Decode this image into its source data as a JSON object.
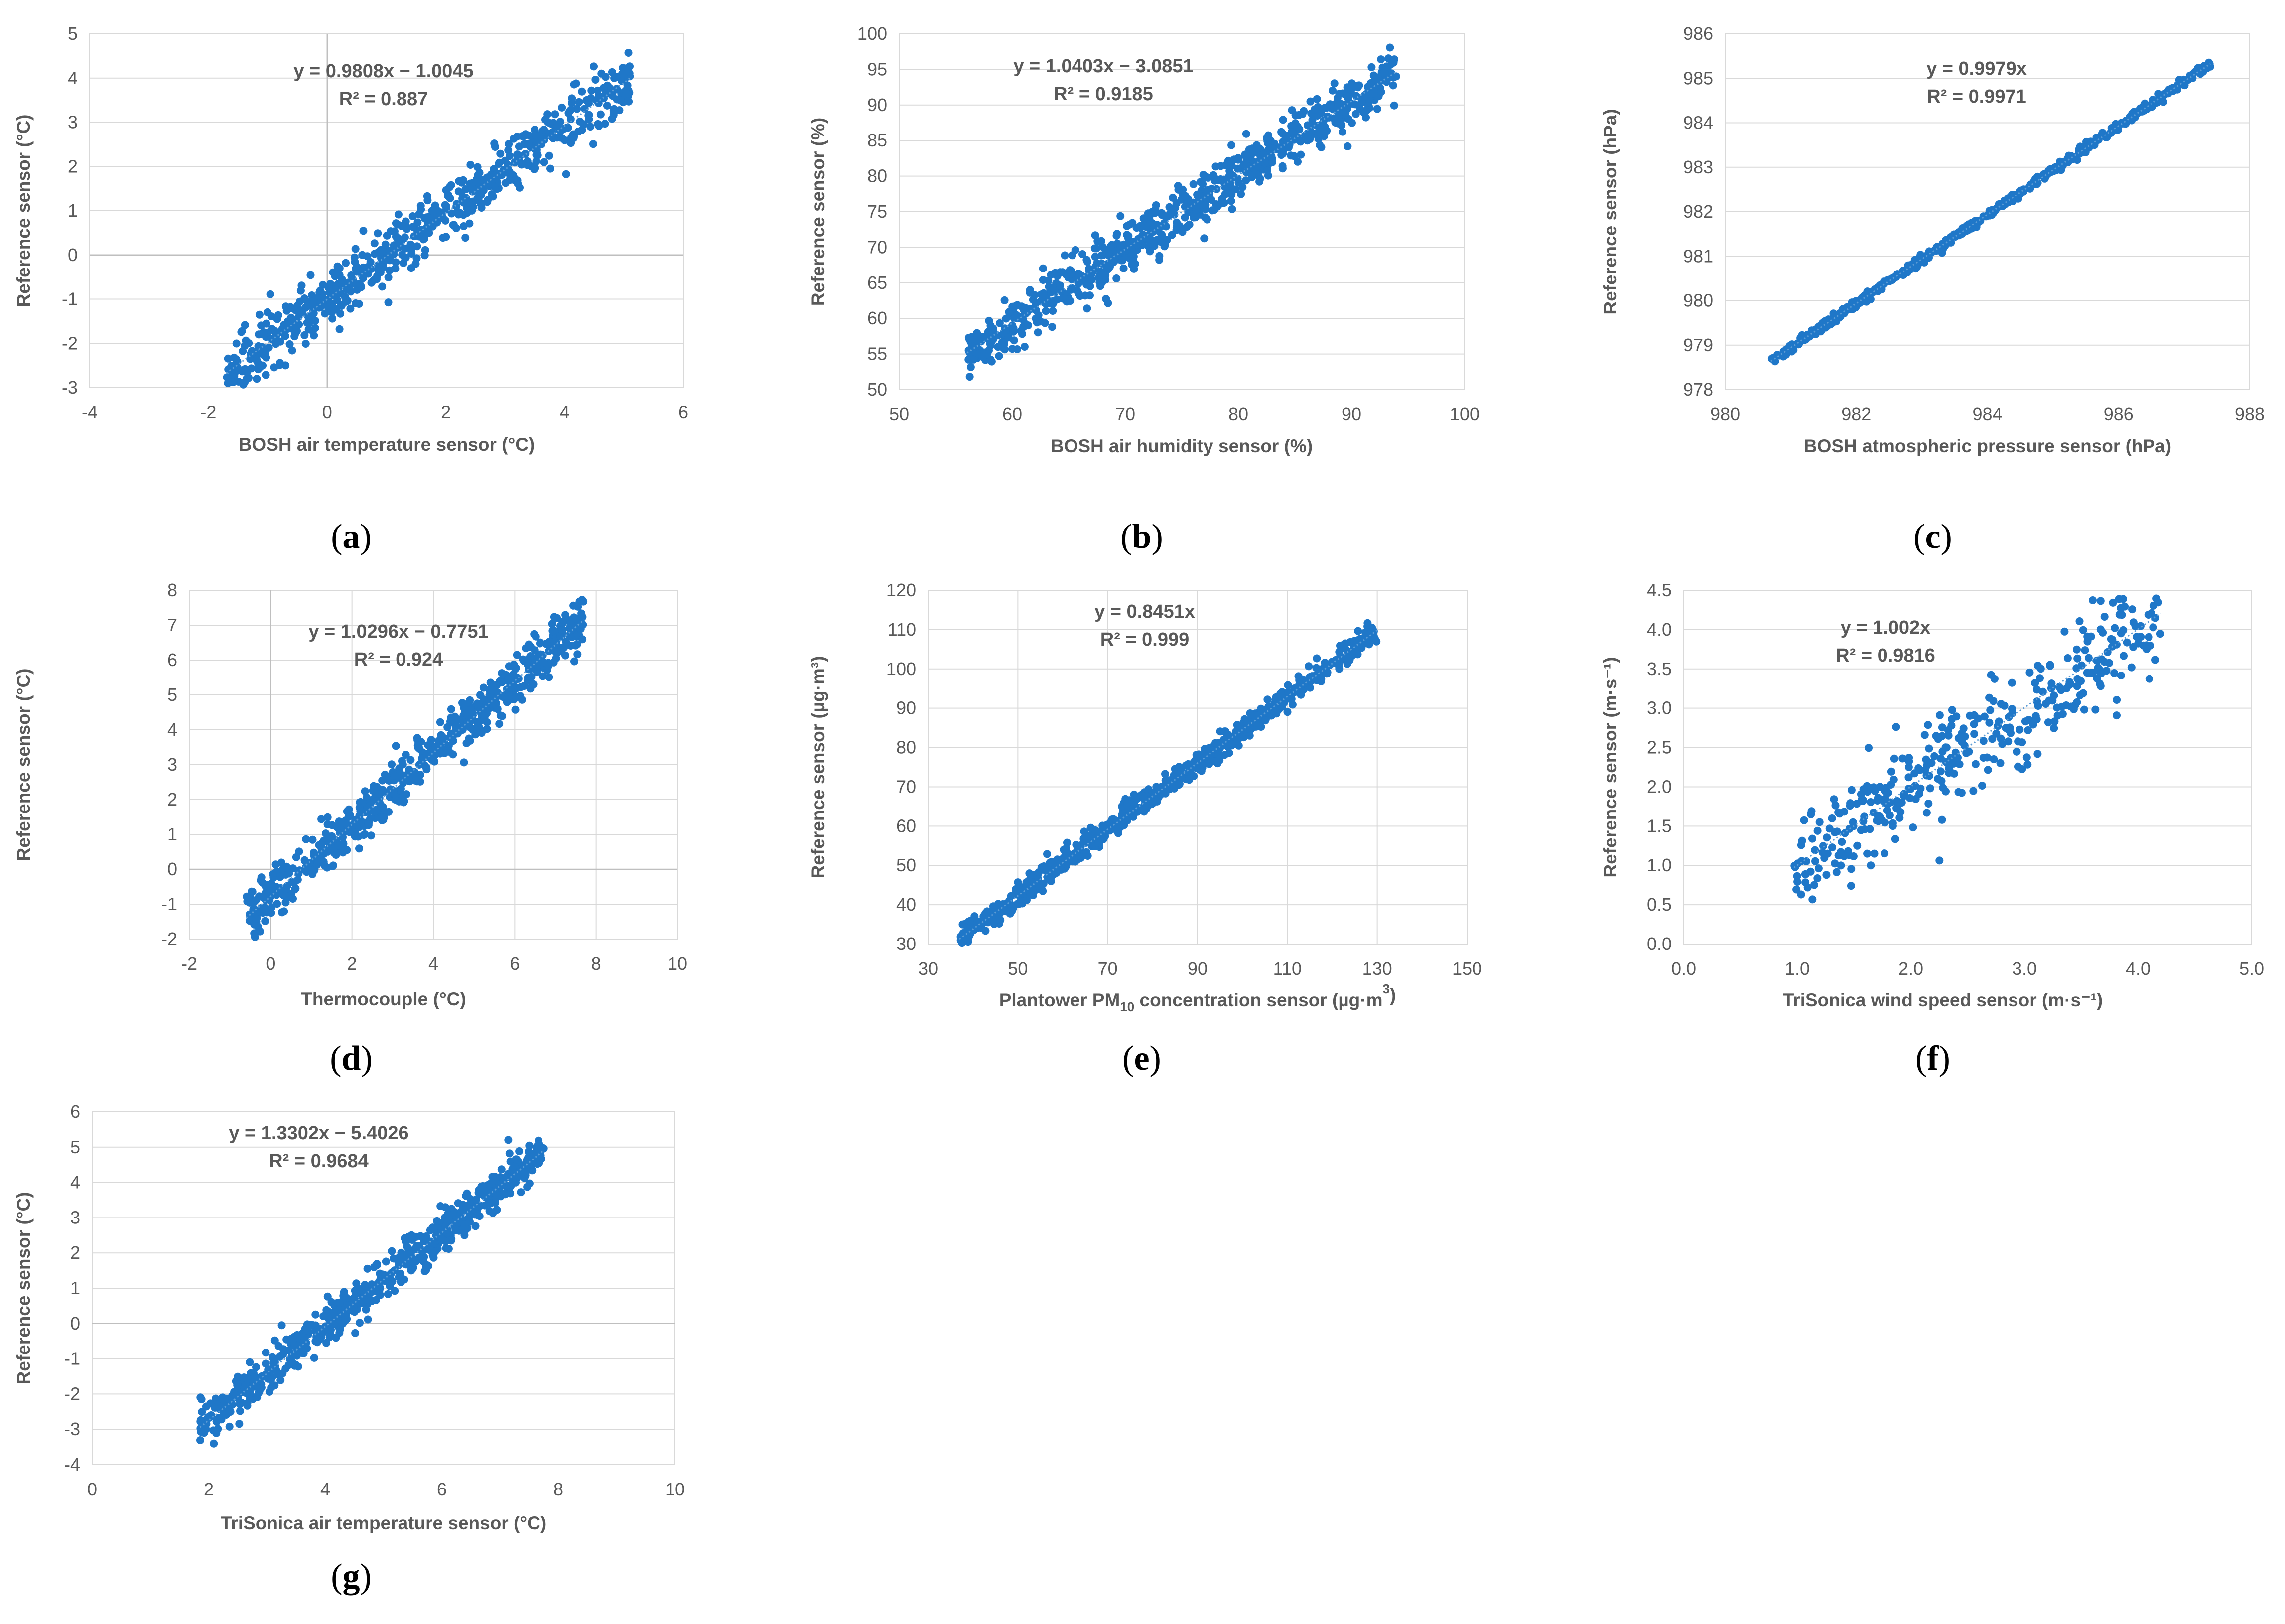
{
  "figure": {
    "marker_color": "#1F77C8",
    "grid_color": "#D9D9D9",
    "text_color": "#595959"
  },
  "chart_data": [
    {
      "id": "a",
      "type": "scatter",
      "caption": "a",
      "xlabel": "BOSH air temperature sensor (°C)",
      "ylabel": "Reference sensor (°C)",
      "xlim": [
        -4,
        6
      ],
      "ylim": [
        -3,
        5
      ],
      "xstep": 2,
      "ystep": 1,
      "xticks": [
        "-4",
        "-2",
        "0",
        "2",
        "4",
        "6"
      ],
      "yticks": [
        "-3",
        "-2",
        "-1",
        "0",
        "1",
        "2",
        "3",
        "4",
        "5"
      ],
      "equation": "y = 0.9808x − 1.0045",
      "r2": "R² = 0.887",
      "slope": 0.9808,
      "intercept": -1.0045,
      "x_range": [
        -1.7,
        5.1
      ],
      "n": 650,
      "noise": 0.32,
      "grid_vertical": false
    },
    {
      "id": "b",
      "type": "scatter",
      "caption": "b",
      "xlabel": "BOSH air humidity sensor (%)",
      "ylabel": "Reference sensor (%)",
      "xlim": [
        50,
        100
      ],
      "ylim": [
        50,
        100
      ],
      "xstep": 10,
      "ystep": 5,
      "xticks": [
        "50",
        "60",
        "70",
        "80",
        "90",
        "100"
      ],
      "yticks": [
        "50",
        "55",
        "60",
        "65",
        "70",
        "75",
        "80",
        "85",
        "90",
        "95",
        "100"
      ],
      "equation": "y = 1.0403x − 3.0851",
      "r2": "R² = 0.9185",
      "slope": 1.0403,
      "intercept": -3.0851,
      "x_range": [
        56,
        94
      ],
      "n": 750,
      "noise": 1.9,
      "grid_vertical": false
    },
    {
      "id": "c",
      "type": "scatter",
      "caption": "c",
      "xlabel": "BOSH atmospheric pressure sensor (hPa)",
      "ylabel": "Reference sensor (hPa)",
      "xlim": [
        980,
        988
      ],
      "ylim": [
        978,
        986
      ],
      "xstep": 2,
      "ystep": 1,
      "xticks": [
        "980",
        "982",
        "984",
        "986",
        "988"
      ],
      "yticks": [
        "978",
        "979",
        "980",
        "981",
        "982",
        "983",
        "984",
        "985",
        "986"
      ],
      "equation": "y = 0.9979x",
      "r2": "R² = 0.9971",
      "slope": 0.9979,
      "intercept": 0,
      "x_range": [
        980.7,
        987.4
      ],
      "n": 500,
      "noise": 0.05,
      "grid_vertical": false
    },
    {
      "id": "d",
      "type": "scatter",
      "caption": "d",
      "xlabel": "Thermocouple (°C)",
      "ylabel": "Reference sensor (°C)",
      "xlim": [
        -2,
        10
      ],
      "ylim": [
        -2,
        8
      ],
      "xstep": 2,
      "ystep": 1,
      "xticks": [
        "-2",
        "0",
        "2",
        "4",
        "6",
        "8",
        "10"
      ],
      "yticks": [
        "-2",
        "-1",
        "0",
        "1",
        "2",
        "3",
        "4",
        "5",
        "6",
        "7",
        "8"
      ],
      "equation": "y = 1.0296x − 0.7751",
      "r2": "R² = 0.924",
      "slope": 1.0296,
      "intercept": -0.7751,
      "x_range": [
        -0.6,
        7.7
      ],
      "n": 650,
      "noise": 0.35,
      "grid_vertical": true
    },
    {
      "id": "e",
      "type": "scatter",
      "caption": "e",
      "xlabel_parts": [
        "Plantower PM",
        "10",
        " concentration sensor (µg·m",
        "3",
        ")"
      ],
      "ylabel": "Reference sensor (µg·m³)",
      "xlim": [
        30,
        150
      ],
      "ylim": [
        30,
        120
      ],
      "xstep": 20,
      "ystep": 10,
      "xticks": [
        "30",
        "50",
        "70",
        "90",
        "110",
        "130",
        "150"
      ],
      "yticks": [
        "30",
        "40",
        "50",
        "60",
        "70",
        "80",
        "90",
        "100",
        "110",
        "120"
      ],
      "equation": "y = 0.8451x",
      "r2": "R² = 0.999",
      "slope": 0.8451,
      "intercept": 0,
      "x_range": [
        37,
        130
      ],
      "n": 650,
      "noise": 1.6,
      "grid_vertical": true
    },
    {
      "id": "f",
      "type": "scatter",
      "caption": "f",
      "xlabel": "TriSonica wind speed sensor (m·s⁻¹)",
      "ylabel": "Reference sensor (m·s⁻¹)",
      "xlim": [
        0,
        5
      ],
      "ylim": [
        0,
        4.5
      ],
      "xstep": 1,
      "ystep": 0.5,
      "xticks": [
        "0.0",
        "1.0",
        "2.0",
        "3.0",
        "4.0",
        "5.0"
      ],
      "yticks": [
        "0.0",
        "0.5",
        "1.0",
        "1.5",
        "2.0",
        "2.5",
        "3.0",
        "3.5",
        "4.0",
        "4.5"
      ],
      "equation": "y = 1.002x",
      "r2": "R² = 0.9816",
      "slope": 1.002,
      "intercept": 0,
      "x_range": [
        0.97,
        4.2
      ],
      "n": 380,
      "noise": 0.33,
      "grid_vertical": false
    },
    {
      "id": "g",
      "type": "scatter",
      "caption": "g",
      "xlabel": "TriSonica air temperature sensor (°C)",
      "ylabel": "Reference sensor (°C)",
      "xlim": [
        0,
        10
      ],
      "ylim": [
        -4,
        6
      ],
      "xstep": 2,
      "ystep": 1,
      "xticks": [
        "0",
        "2",
        "4",
        "6",
        "8",
        "10"
      ],
      "yticks": [
        "-4",
        "-3",
        "-2",
        "-1",
        "0",
        "1",
        "2",
        "3",
        "4",
        "5",
        "6"
      ],
      "equation": "y = 1.3302x − 5.4026",
      "r2": "R² = 0.9684",
      "slope": 1.3302,
      "intercept": -5.4026,
      "x_range": [
        1.85,
        7.75
      ],
      "n": 650,
      "noise": 0.28,
      "grid_vertical": false
    }
  ]
}
